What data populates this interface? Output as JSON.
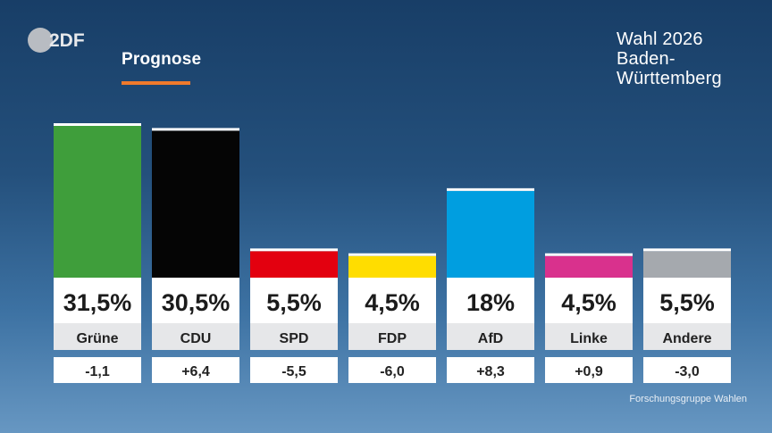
{
  "broadcaster": {
    "logo_text": "2DF",
    "logo_icon": "zdf-logo-icon"
  },
  "tab": {
    "label": "Prognose",
    "accent_color": "#f07a2c"
  },
  "election": {
    "line1": "Wahl 2026",
    "line2": "Baden-",
    "line3": "Württemberg"
  },
  "source": "Forschungsgruppe Wahlen",
  "chart_data": {
    "type": "bar",
    "categories": [
      "Grüne",
      "CDU",
      "SPD",
      "FDP",
      "AfD",
      "Linke",
      "Andere"
    ],
    "values": [
      31.5,
      30.5,
      5.5,
      4.5,
      18,
      4.5,
      5.5
    ],
    "value_labels": [
      "31,5%",
      "30,5%",
      "5,5%",
      "4,5%",
      "18%",
      "4,5%",
      "5,5%"
    ],
    "change_labels": [
      "-1,1",
      "+6,4",
      "-5,5",
      "-6,0",
      "+8,3",
      "+0,9",
      "-3,0"
    ],
    "colors": [
      "#3f9e3b",
      "#050505",
      "#e3000f",
      "#ffdd00",
      "#009ee0",
      "#d9318d",
      "#a5a9ae"
    ],
    "ylim": [
      0,
      31.5
    ],
    "grid": false,
    "legend": "none"
  }
}
